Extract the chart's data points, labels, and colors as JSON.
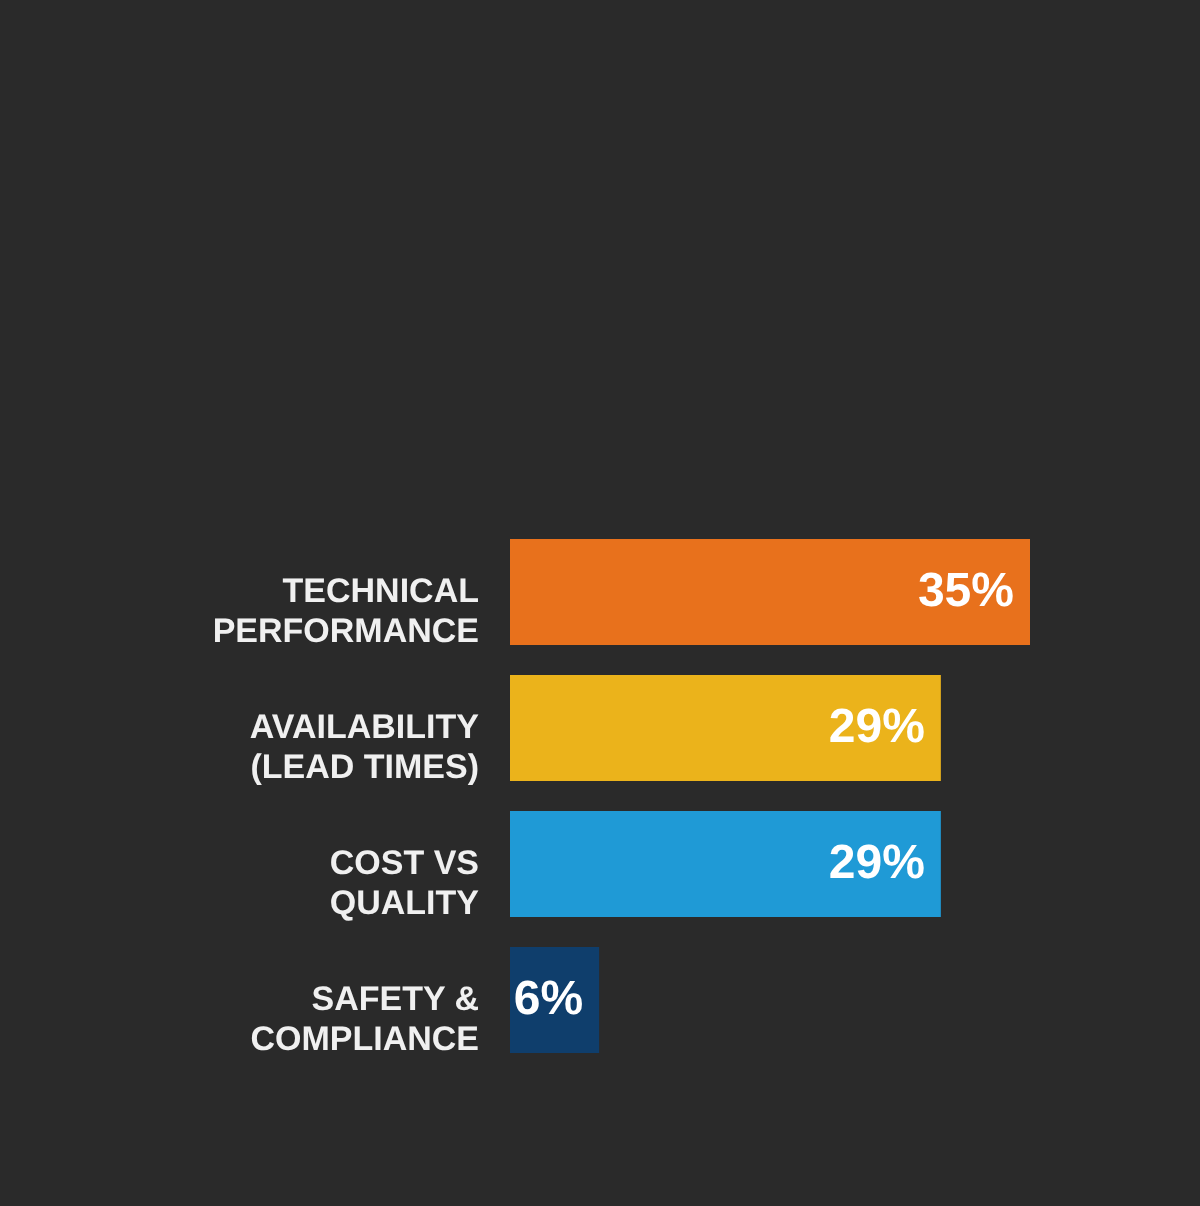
{
  "chart_data": {
    "type": "bar",
    "orientation": "horizontal",
    "categories": [
      "TECHNICAL\nPERFORMANCE",
      "AVAILABILITY\n(LEAD TIMES)",
      "COST VS\nQUALITY",
      "SAFETY &\nCOMPLIANCE"
    ],
    "values": [
      35,
      29,
      29,
      6
    ],
    "colors": [
      "#e8711c",
      "#ebb31b",
      "#1f9ad6",
      "#0f3e6c"
    ],
    "value_labels": [
      "35%",
      "29%",
      "29%",
      "6%"
    ],
    "grid": false
  }
}
